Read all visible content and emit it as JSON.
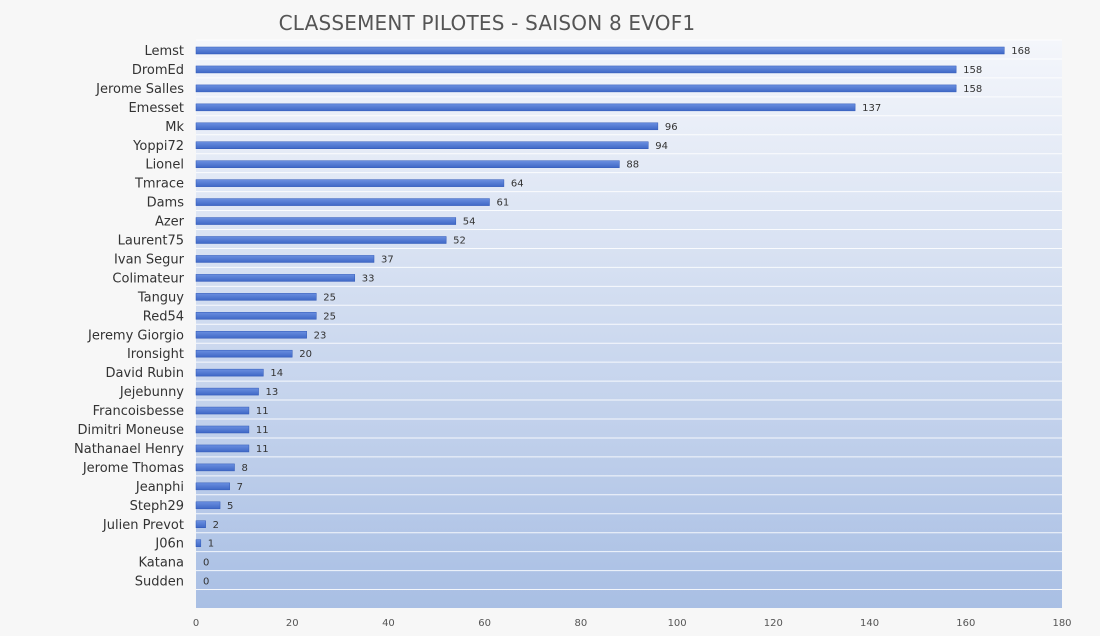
{
  "chart_data": {
    "type": "bar",
    "orientation": "horizontal",
    "title": "CLASSEMENT PILOTES - SAISON 8   EVOF1",
    "categories": [
      "Lemst",
      "DromEd",
      "Jerome Salles",
      "Emesset",
      "Mk",
      "Yoppi72",
      "Lionel",
      "Tmrace",
      "Dams",
      "Azer",
      "Laurent75",
      "Ivan Segur",
      "Colimateur",
      "Tanguy",
      "Red54",
      "Jeremy Giorgio",
      "Ironsight",
      "David Rubin",
      "Jejebunny",
      "Francoisbesse",
      "Dimitri Moneuse",
      "Nathanael Henry",
      "Jerome Thomas",
      "Jeanphi",
      "Steph29",
      "Julien Prevot",
      "J06n",
      "Katana",
      "Sudden"
    ],
    "values": [
      168,
      158,
      158,
      137,
      96,
      94,
      88,
      64,
      61,
      54,
      52,
      37,
      33,
      25,
      25,
      23,
      20,
      14,
      13,
      11,
      11,
      11,
      8,
      7,
      5,
      2,
      1,
      0,
      0
    ],
    "xlim": [
      0,
      180
    ],
    "xticks": [
      0,
      20,
      40,
      60,
      80,
      100,
      120,
      140,
      160,
      180
    ],
    "grid": "horizontal row lines",
    "data_labels": true,
    "legend": "none",
    "colors": {
      "bar": "#3f68c6",
      "bar_light": "#6a8fe0",
      "plot_bg_top": "#f4f6fb",
      "plot_bg_bottom": "#a9bfe4",
      "gridline": "#ffffff"
    }
  }
}
